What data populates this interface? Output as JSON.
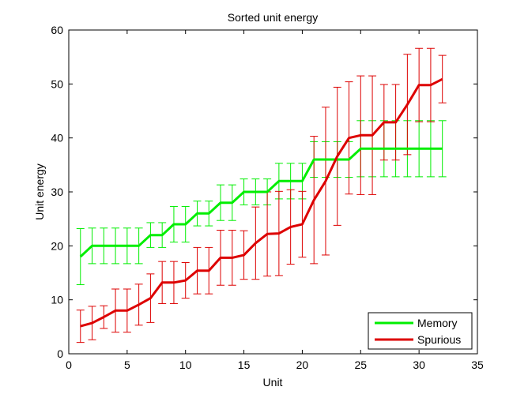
{
  "chart_data": {
    "type": "line",
    "title": "Sorted unit energy",
    "xlabel": "Unit",
    "ylabel": "Unit energy",
    "xlim": [
      0,
      35
    ],
    "ylim": [
      0,
      60
    ],
    "xticks": [
      0,
      5,
      10,
      15,
      20,
      25,
      30,
      35
    ],
    "yticks": [
      0,
      10,
      20,
      30,
      40,
      50,
      60
    ],
    "grid": false,
    "legend_position": "bottom-right",
    "x": [
      1,
      2,
      3,
      4,
      5,
      6,
      7,
      8,
      9,
      10,
      11,
      12,
      13,
      14,
      15,
      16,
      17,
      18,
      19,
      20,
      21,
      22,
      23,
      24,
      25,
      26,
      27,
      28,
      29,
      30,
      31,
      32
    ],
    "series": [
      {
        "name": "Memory",
        "color": "#00ee00",
        "values": [
          18,
          20,
          20,
          20,
          20,
          20,
          22,
          22,
          24,
          24,
          26,
          26,
          28,
          28,
          30,
          30,
          30,
          32,
          32,
          32,
          36,
          36,
          36,
          36,
          38,
          38,
          38,
          38,
          38,
          38,
          38,
          38
        ],
        "err": [
          5.2,
          3.3,
          3.3,
          3.3,
          3.3,
          3.3,
          2.3,
          2.3,
          3.3,
          3.3,
          2.3,
          2.3,
          3.3,
          3.3,
          2.4,
          2.4,
          2.4,
          3.3,
          3.3,
          3.3,
          3.3,
          3.3,
          3.3,
          3.3,
          5.2,
          5.2,
          5.2,
          5.2,
          5.2,
          5.2,
          5.2,
          5.2
        ]
      },
      {
        "name": "Spurious",
        "color": "#dd0000",
        "values": [
          5.1,
          5.7,
          6.8,
          8,
          8,
          9.1,
          10.3,
          13.2,
          13.2,
          13.6,
          15.4,
          15.4,
          17.8,
          17.8,
          18.3,
          20.5,
          22.2,
          22.3,
          23.5,
          24,
          28.5,
          32,
          36.6,
          40,
          40.5,
          40.5,
          42.9,
          42.9,
          46.2,
          49.8,
          49.8,
          50.9
        ],
        "err": [
          3,
          3.1,
          2.1,
          4,
          4,
          3.8,
          4.5,
          3.9,
          3.9,
          3.3,
          4.3,
          4.3,
          5.1,
          5.1,
          4.5,
          6.7,
          7.8,
          7.8,
          6.9,
          6.1,
          11.8,
          13.7,
          12.8,
          10.4,
          11,
          11,
          7,
          7,
          9.3,
          6.8,
          6.8,
          4.4
        ]
      }
    ]
  }
}
